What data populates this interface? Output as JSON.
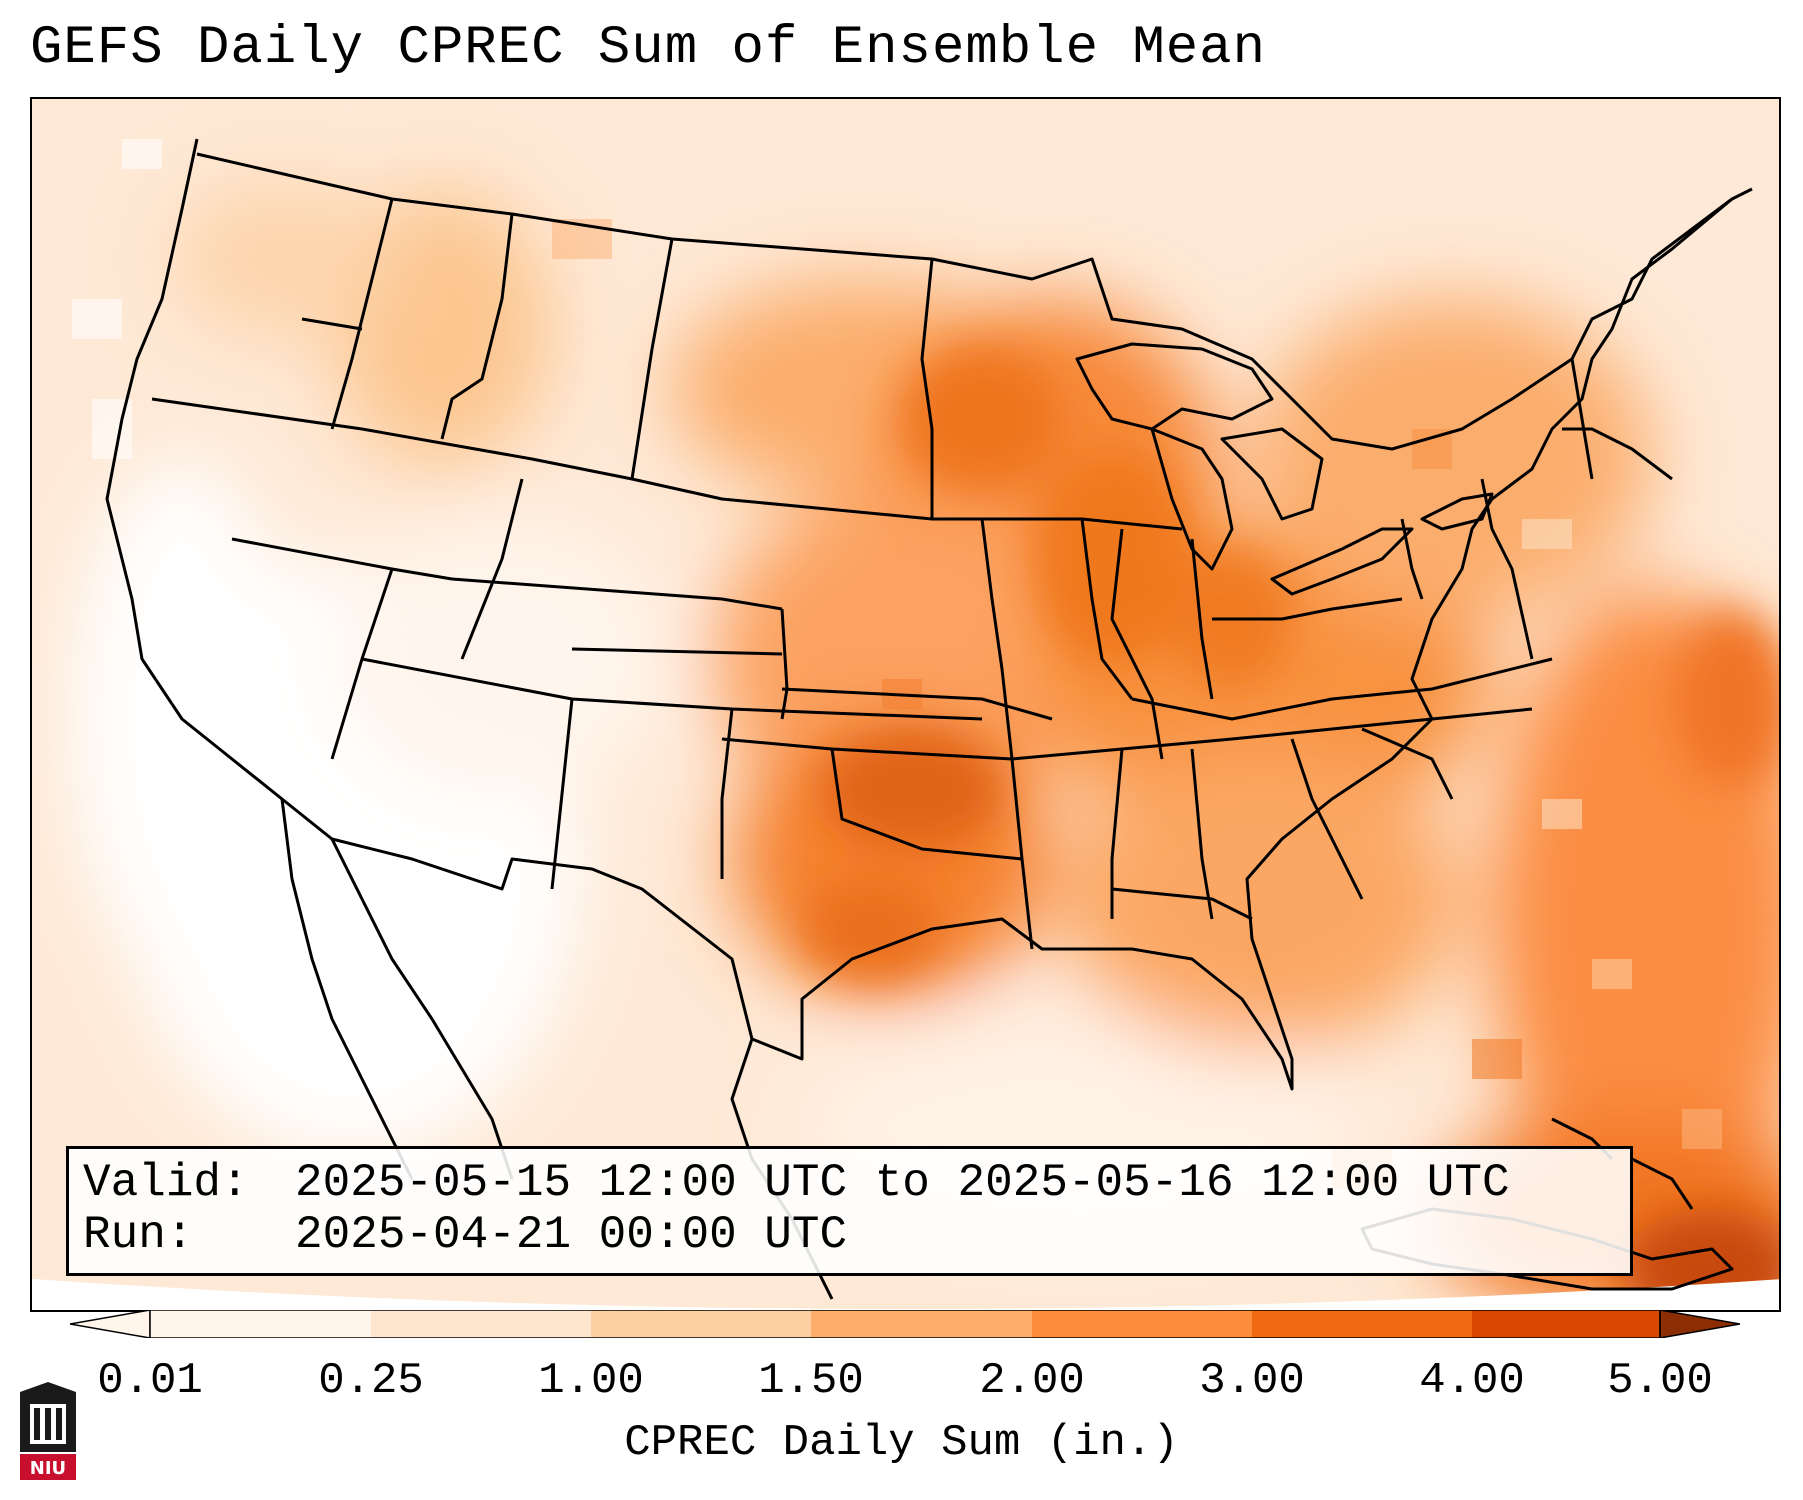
{
  "title": "GEFS Daily CPREC Sum of Ensemble Mean",
  "info": {
    "valid_label": "Valid:",
    "valid_value": "2025-05-15 12:00 UTC to 2025-05-16 12:00 UTC",
    "run_label": "Run:",
    "run_value": "2025-04-21 00:00 UTC"
  },
  "colorbar": {
    "label": "CPREC Daily Sum (in.)",
    "ticks": [
      "0.01",
      "0.25",
      "1.00",
      "1.50",
      "2.00",
      "3.00",
      "4.00",
      "5.00"
    ],
    "colors": [
      "#fff5eb",
      "#fee6ce",
      "#fdd0a2",
      "#fdae6b",
      "#fd8d3c",
      "#f16913",
      "#d94801",
      "#8c2d04"
    ],
    "extend": "both"
  },
  "logo": {
    "text": "NIU",
    "color": "#c8102e"
  },
  "map": {
    "projection": "Lambert Conformal (CONUS)",
    "basemap": "US state borders and coastlines",
    "precip_regions": [
      {
        "name": "Southern Plains (Oklahoma / North Texas)",
        "color": "#e06412"
      },
      {
        "name": "Upper Midwest (Minnesota / Wisconsin)",
        "color": "#f47e2e"
      },
      {
        "name": "Ohio Valley",
        "color": "#f8892f"
      },
      {
        "name": "Southeast",
        "color": "#fba463"
      },
      {
        "name": "Western Atlantic",
        "color": "#fb8a3d"
      },
      {
        "name": "Northern Rockies",
        "color": "#fcc690"
      },
      {
        "name": "Desert Southwest",
        "color": "#ffffff"
      }
    ]
  }
}
